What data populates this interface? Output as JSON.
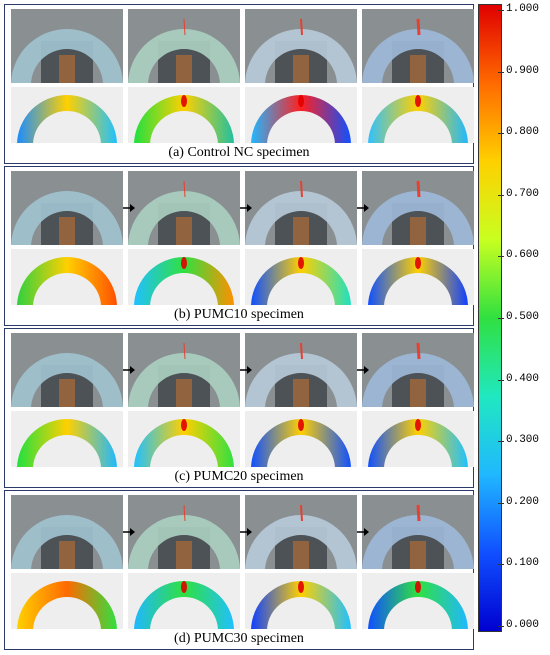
{
  "panels": [
    {
      "caption": "(a) Control NC specimen",
      "arrows": false
    },
    {
      "caption": "(b) PUMC10 specimen",
      "arrows": true
    },
    {
      "caption": "(c) PUMC20 specimen",
      "arrows": true
    },
    {
      "caption": "(d) PUMC30 specimen",
      "arrows": true
    }
  ],
  "colorbar": {
    "ticks": [
      "1.000",
      "0.900",
      "0.800",
      "0.700",
      "0.600",
      "0.500",
      "0.400",
      "0.300",
      "0.200",
      "0.100",
      "0.000"
    ],
    "colors": [
      "#e00000",
      "#ff6a00",
      "#ffd000",
      "#c8ff20",
      "#30e040",
      "#20e8c0",
      "#20b8ff",
      "#1050ff",
      "#0000d0"
    ]
  }
}
